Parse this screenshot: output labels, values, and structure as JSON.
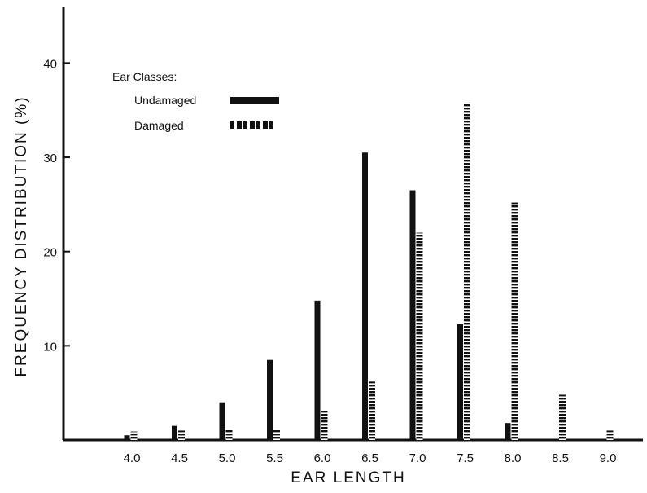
{
  "chart_data": {
    "type": "bar",
    "xlabel": "EAR LENGTH",
    "ylabel": "FREQUENCY DISTRIBUTION (%)",
    "categories": [
      "4.0",
      "4.5",
      "5.0",
      "5.5",
      "6.0",
      "6.5",
      "7.0",
      "7.5",
      "8.0",
      "8.5",
      "9.0"
    ],
    "series": [
      {
        "name": "Undamaged",
        "style": "solid",
        "color": "#111111",
        "values": [
          0.5,
          1.5,
          4.0,
          8.5,
          14.8,
          30.5,
          26.5,
          12.3,
          1.8,
          0,
          0
        ]
      },
      {
        "name": "Damaged",
        "style": "dashed",
        "color": "#111111",
        "values": [
          0.9,
          1.0,
          1.2,
          1.2,
          3.2,
          6.2,
          22.0,
          35.8,
          25.2,
          4.8,
          1.0
        ]
      }
    ],
    "yticks": [
      10,
      20,
      30,
      40
    ],
    "ylim": [
      0,
      46
    ],
    "legend": {
      "title": "Ear Classes:",
      "placement": "top-left"
    },
    "grid": false
  }
}
